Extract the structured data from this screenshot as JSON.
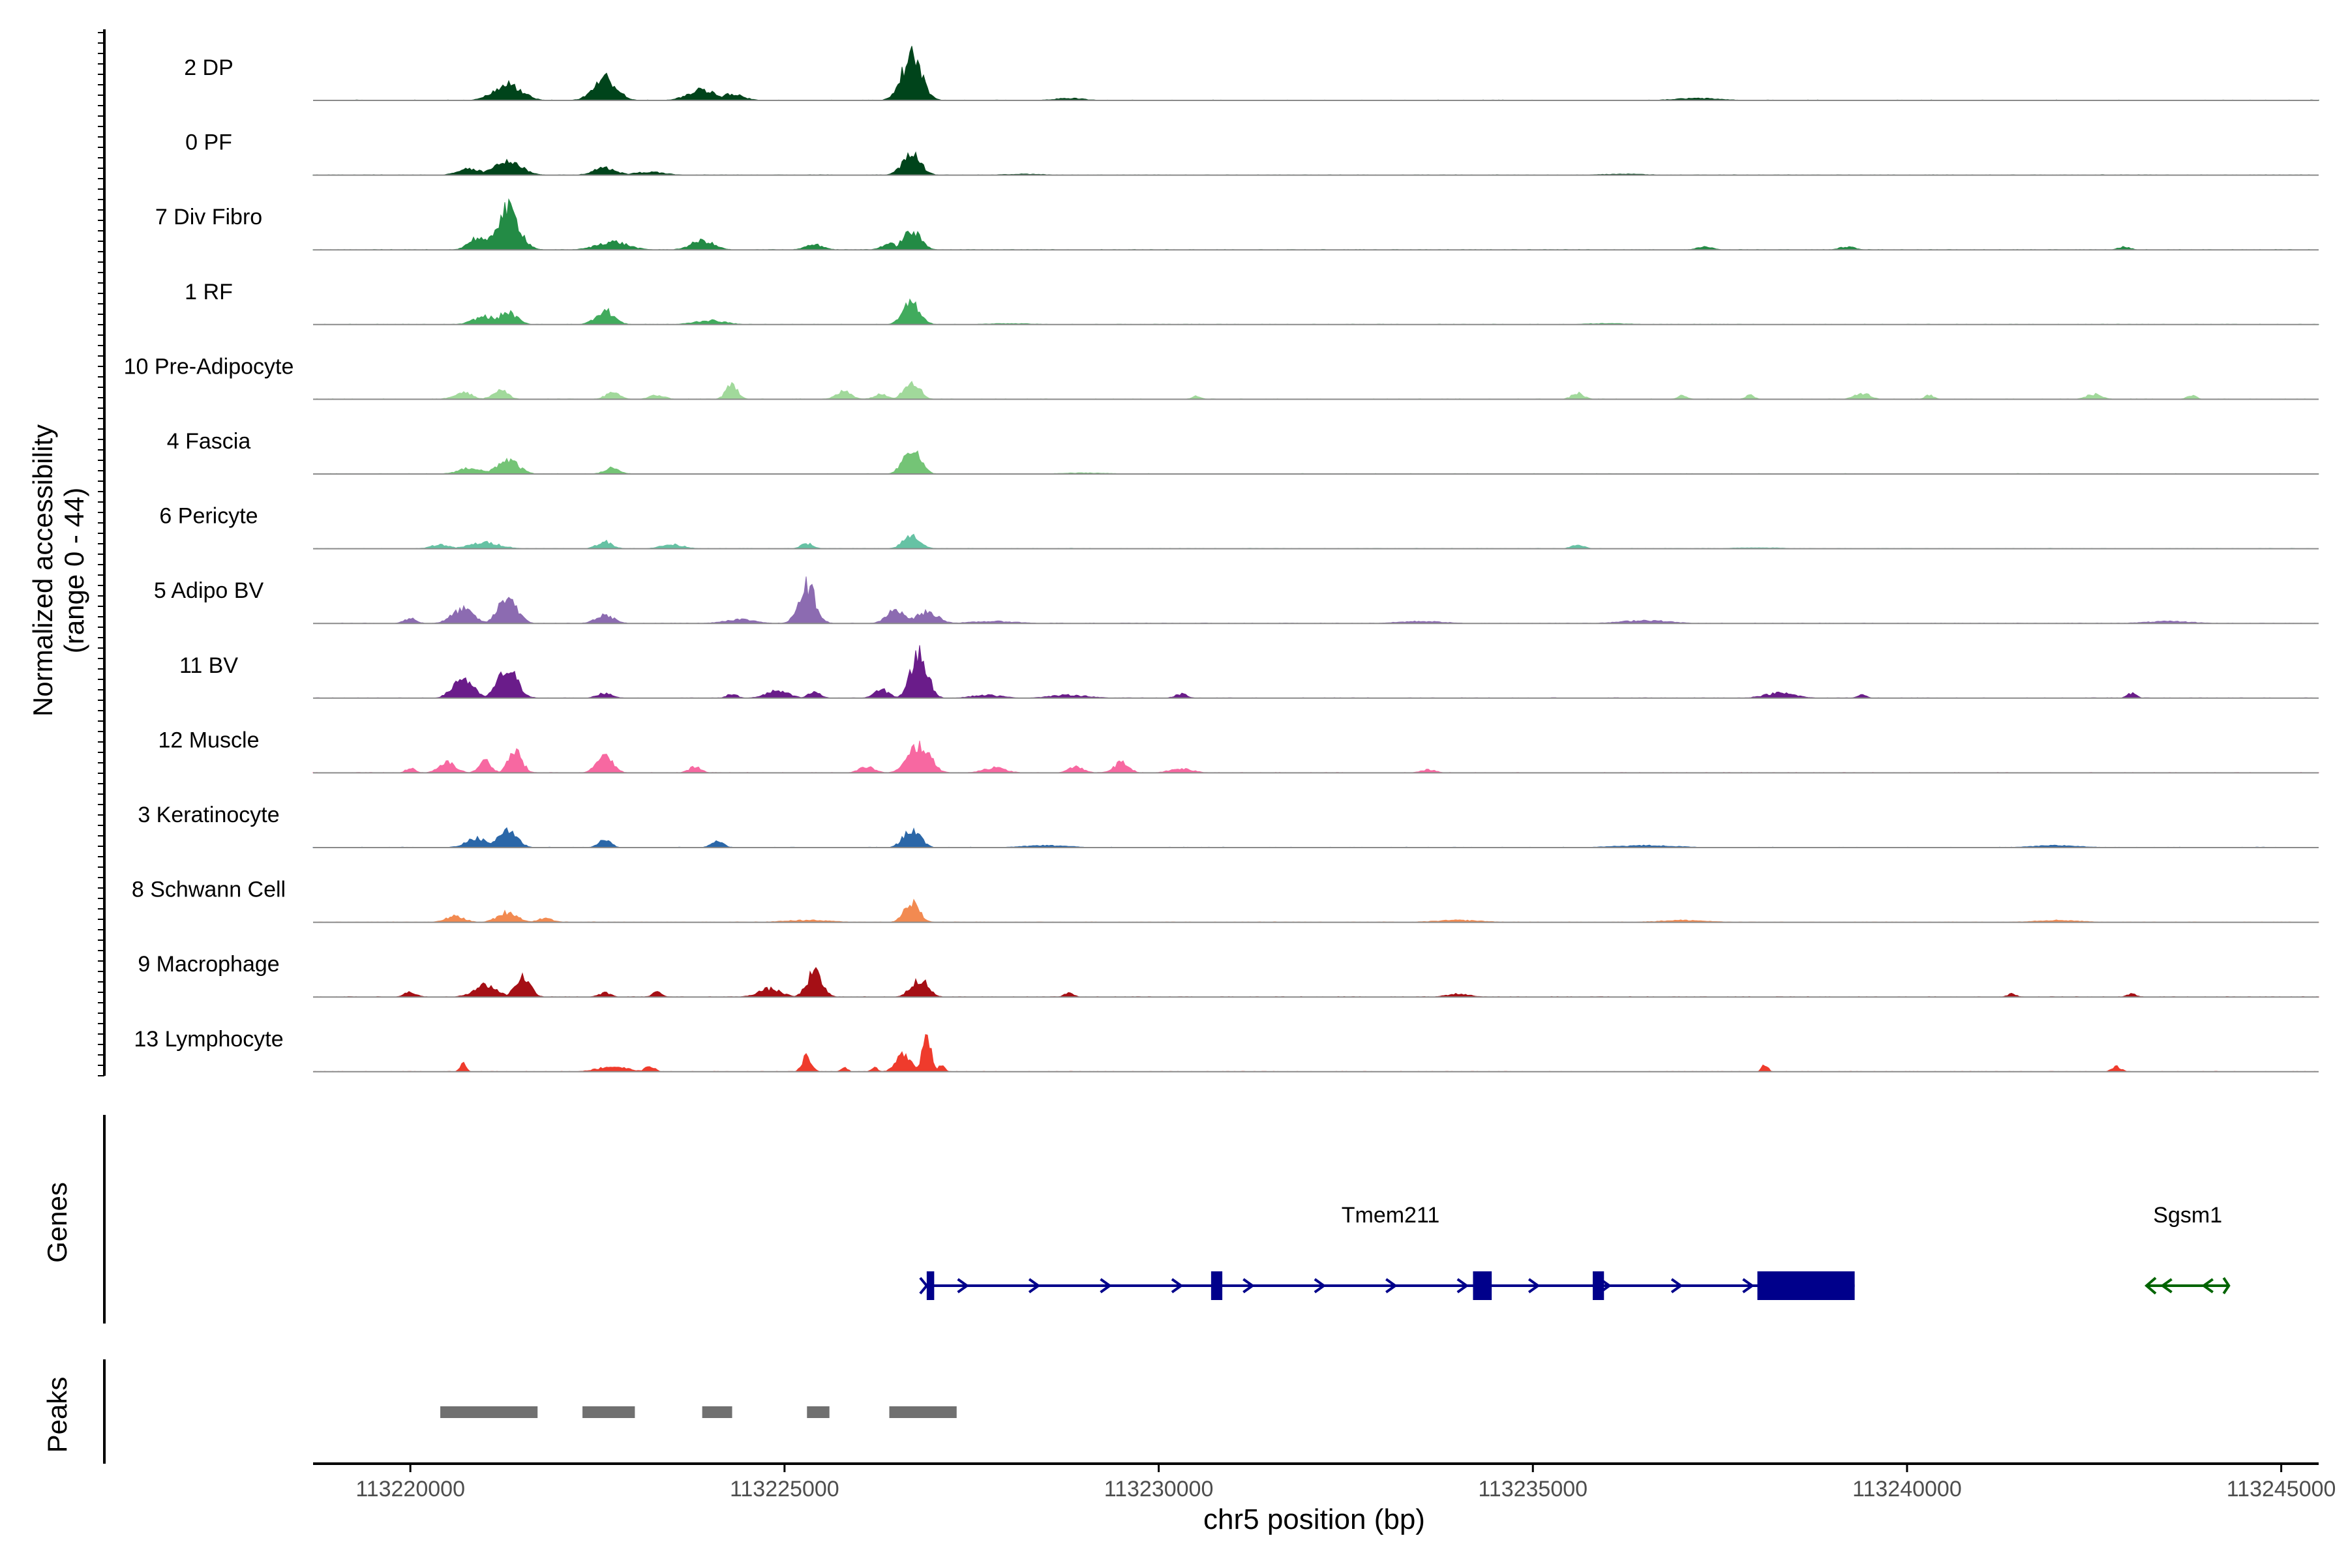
{
  "chart_data": {
    "type": "area",
    "chromosome": "chr5",
    "xlabel": "chr5 position (bp)",
    "ylabel_line1": "Normalized accessibility",
    "ylabel_line2": "(range 0 - 44)",
    "y_range": [
      0,
      44
    ],
    "x_range": [
      113218700,
      113245500
    ],
    "x_ticks": [
      113220000,
      113225000,
      113230000,
      113235000,
      113240000,
      113245000
    ],
    "x_tick_labels": [
      "113220000",
      "113225000",
      "113230000",
      "113235000",
      "113240000",
      "113245000"
    ],
    "tracks": [
      {
        "name": "2 DP",
        "color": "#00441b",
        "peaks": [
          [
            113221300,
            180,
            16
          ],
          [
            113222600,
            150,
            22
          ],
          [
            113223900,
            180,
            11
          ],
          [
            113224300,
            150,
            6
          ],
          [
            113226700,
            130,
            44
          ],
          [
            113228800,
            200,
            2
          ],
          [
            113237200,
            300,
            2
          ]
        ]
      },
      {
        "name": "0 PF",
        "color": "#00441b",
        "peaks": [
          [
            113220800,
            150,
            6
          ],
          [
            113221300,
            180,
            14
          ],
          [
            113222600,
            150,
            7
          ],
          [
            113223200,
            200,
            3
          ],
          [
            113226700,
            120,
            20
          ],
          [
            113228200,
            250,
            1
          ],
          [
            113236200,
            300,
            1
          ]
        ]
      },
      {
        "name": "7 Div Fibro",
        "color": "#238b45",
        "peaks": [
          [
            113221300,
            150,
            40
          ],
          [
            113220900,
            120,
            12
          ],
          [
            113222700,
            200,
            8
          ],
          [
            113223900,
            150,
            9
          ],
          [
            113225400,
            120,
            5
          ],
          [
            113226700,
            120,
            18
          ],
          [
            113226400,
            100,
            6
          ],
          [
            113237300,
            100,
            3
          ],
          [
            113239200,
            100,
            3
          ],
          [
            113242900,
            80,
            3
          ]
        ]
      },
      {
        "name": "1 RF",
        "color": "#41ab5d",
        "peaks": [
          [
            113221000,
            150,
            8
          ],
          [
            113221300,
            120,
            12
          ],
          [
            113222600,
            120,
            14
          ],
          [
            113224000,
            200,
            4
          ],
          [
            113226700,
            110,
            22
          ],
          [
            113228000,
            300,
            1
          ],
          [
            113236000,
            300,
            1
          ]
        ]
      },
      {
        "name": "10 Pre-Adipocyte",
        "color": "#a1d99b",
        "peaks": [
          [
            113220700,
            120,
            7
          ],
          [
            113221200,
            100,
            9
          ],
          [
            113222700,
            100,
            6
          ],
          [
            113223300,
            100,
            4
          ],
          [
            113224300,
            80,
            14
          ],
          [
            113225800,
            100,
            8
          ],
          [
            113226300,
            100,
            5
          ],
          [
            113226700,
            100,
            19
          ],
          [
            113230500,
            60,
            3
          ],
          [
            113235600,
            80,
            6
          ],
          [
            113237000,
            60,
            4
          ],
          [
            113237900,
            60,
            4
          ],
          [
            113239400,
            100,
            6
          ],
          [
            113240300,
            60,
            4
          ],
          [
            113242500,
            100,
            5
          ],
          [
            113243800,
            60,
            4
          ]
        ]
      },
      {
        "name": "4 Fascia",
        "color": "#74c476",
        "peaks": [
          [
            113220800,
            150,
            6
          ],
          [
            113221300,
            140,
            14
          ],
          [
            113222700,
            100,
            6
          ],
          [
            113226700,
            110,
            26
          ],
          [
            113229000,
            300,
            1
          ]
        ]
      },
      {
        "name": "6 Pericyte",
        "color": "#66c2a4",
        "peaks": [
          [
            113220400,
            120,
            4
          ],
          [
            113221000,
            200,
            6
          ],
          [
            113222600,
            100,
            7
          ],
          [
            113223500,
            150,
            4
          ],
          [
            113225300,
            80,
            5
          ],
          [
            113226700,
            110,
            13
          ],
          [
            113235600,
            80,
            4
          ],
          [
            113238000,
            300,
            1
          ]
        ]
      },
      {
        "name": "5 Adipo BV",
        "color": "#8c6bb1",
        "peaks": [
          [
            113220000,
            80,
            5
          ],
          [
            113220700,
            140,
            14
          ],
          [
            113221300,
            120,
            27
          ],
          [
            113222600,
            120,
            8
          ],
          [
            113224400,
            200,
            4
          ],
          [
            113225300,
            110,
            38
          ],
          [
            113226500,
            120,
            14
          ],
          [
            113226900,
            150,
            11
          ],
          [
            113227800,
            300,
            2
          ],
          [
            113233500,
            300,
            2
          ],
          [
            113236500,
            300,
            3
          ],
          [
            113243500,
            300,
            2
          ]
        ]
      },
      {
        "name": "11 BV",
        "color": "#6a1c8a",
        "peaks": [
          [
            113220700,
            130,
            20
          ],
          [
            113221300,
            130,
            28
          ],
          [
            113222600,
            100,
            5
          ],
          [
            113224300,
            70,
            4
          ],
          [
            113224900,
            150,
            7
          ],
          [
            113225400,
            80,
            6
          ],
          [
            113226300,
            100,
            8
          ],
          [
            113226800,
            110,
            44
          ],
          [
            113227700,
            200,
            3
          ],
          [
            113228800,
            250,
            3
          ],
          [
            113230300,
            80,
            4
          ],
          [
            113238300,
            200,
            5
          ],
          [
            113239400,
            60,
            3
          ],
          [
            113243000,
            60,
            5
          ]
        ]
      },
      {
        "name": "12 Muscle",
        "color": "#f768a1",
        "peaks": [
          [
            113220000,
            60,
            5
          ],
          [
            113220500,
            110,
            10
          ],
          [
            113221000,
            80,
            12
          ],
          [
            113221400,
            90,
            22
          ],
          [
            113222600,
            100,
            20
          ],
          [
            113223800,
            80,
            6
          ],
          [
            113226100,
            100,
            6
          ],
          [
            113226800,
            140,
            28
          ],
          [
            113227800,
            150,
            5
          ],
          [
            113228900,
            100,
            6
          ],
          [
            113229500,
            100,
            10
          ],
          [
            113230300,
            150,
            4
          ],
          [
            113233600,
            100,
            3
          ]
        ]
      },
      {
        "name": "3 Keratinocyte",
        "color": "#2b67a8",
        "peaks": [
          [
            113220900,
            150,
            9
          ],
          [
            113221300,
            120,
            18
          ],
          [
            113222600,
            80,
            8
          ],
          [
            113224100,
            80,
            7
          ],
          [
            113226700,
            110,
            18
          ],
          [
            113228500,
            300,
            2
          ],
          [
            113236500,
            400,
            2
          ],
          [
            113242000,
            300,
            2
          ]
        ]
      },
      {
        "name": "8 Schwann Cell",
        "color": "#f28a51",
        "peaks": [
          [
            113220600,
            120,
            6
          ],
          [
            113221300,
            130,
            10
          ],
          [
            113221800,
            100,
            4
          ],
          [
            113225300,
            300,
            2
          ],
          [
            113226700,
            100,
            19
          ],
          [
            113234000,
            300,
            2
          ],
          [
            113237000,
            300,
            2
          ],
          [
            113242000,
            300,
            2
          ]
        ]
      },
      {
        "name": "9 Macrophage",
        "color": "#a50f15",
        "peaks": [
          [
            113220000,
            80,
            5
          ],
          [
            113221000,
            150,
            12
          ],
          [
            113221500,
            100,
            20
          ],
          [
            113222600,
            80,
            4
          ],
          [
            113223300,
            60,
            5
          ],
          [
            113224800,
            150,
            8
          ],
          [
            113225400,
            100,
            24
          ],
          [
            113226800,
            110,
            18
          ],
          [
            113228800,
            60,
            4
          ],
          [
            113234000,
            150,
            3
          ],
          [
            113241400,
            60,
            3
          ],
          [
            113243000,
            60,
            3
          ]
        ]
      },
      {
        "name": "13 Lymphocyte",
        "color": "#ef3b2c",
        "peaks": [
          [
            113220700,
            40,
            8
          ],
          [
            113222700,
            200,
            5
          ],
          [
            113223200,
            60,
            6
          ],
          [
            113225300,
            60,
            16
          ],
          [
            113225800,
            40,
            5
          ],
          [
            113226200,
            40,
            5
          ],
          [
            113226600,
            100,
            18
          ],
          [
            113226900,
            60,
            36
          ],
          [
            113227100,
            40,
            8
          ],
          [
            113238100,
            40,
            8
          ],
          [
            113242800,
            60,
            5
          ]
        ]
      }
    ],
    "genes_label": "Genes",
    "genes": [
      {
        "name": "Tmem211",
        "strand": "+",
        "color": "#00008b",
        "start": 113226900,
        "end": 113239300,
        "exons": [
          [
            113226900,
            113227000
          ],
          [
            113230700,
            113230850
          ],
          [
            113234200,
            113234450
          ],
          [
            113235800,
            113235950
          ],
          [
            113238000,
            113239300
          ]
        ]
      },
      {
        "name": "Sgsm1",
        "strand": "-",
        "color": "#006400",
        "start": 113243200,
        "end": 113244300,
        "exons": []
      }
    ],
    "peaks_label": "Peaks",
    "peak_regions": [
      [
        113220400,
        113221700
      ],
      [
        113222300,
        113223000
      ],
      [
        113223900,
        113224300
      ],
      [
        113225300,
        113225600
      ],
      [
        113226400,
        113227300
      ]
    ]
  }
}
